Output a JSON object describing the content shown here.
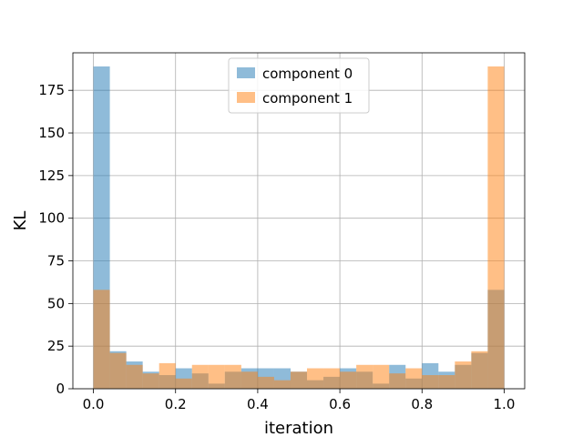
{
  "chart_data": {
    "type": "bar",
    "title": "",
    "xlabel": "iteration",
    "ylabel": "KL",
    "xlim": [
      -0.05,
      1.05
    ],
    "ylim": [
      0,
      197
    ],
    "grid": true,
    "legend_position": "top-center",
    "bin_width": 0.04,
    "bin_starts": [
      0.0,
      0.04,
      0.08,
      0.12,
      0.16,
      0.2,
      0.24,
      0.28,
      0.32,
      0.36,
      0.4,
      0.44,
      0.48,
      0.52,
      0.56,
      0.6,
      0.64,
      0.68,
      0.72,
      0.76,
      0.8,
      0.84,
      0.88,
      0.92,
      0.96
    ],
    "x_ticks": [
      0.0,
      0.2,
      0.4,
      0.6,
      0.8,
      1.0
    ],
    "x_tick_labels": [
      "0.0",
      "0.2",
      "0.4",
      "0.6",
      "0.8",
      "1.0"
    ],
    "y_ticks": [
      0,
      25,
      50,
      75,
      100,
      125,
      150,
      175
    ],
    "y_tick_labels": [
      "0",
      "25",
      "50",
      "75",
      "100",
      "125",
      "150",
      "175"
    ],
    "series": [
      {
        "name": "component 0",
        "color": "#1f77b4",
        "values": [
          189,
          22,
          16,
          10,
          8,
          12,
          9,
          3,
          10,
          12,
          12,
          12,
          10,
          5,
          7,
          12,
          10,
          3,
          14,
          6,
          15,
          10,
          14,
          21,
          58
        ]
      },
      {
        "name": "component 1",
        "color": "#ff7f0e",
        "values": [
          58,
          21,
          14,
          9,
          15,
          6,
          14,
          14,
          14,
          10,
          7,
          5,
          10,
          12,
          12,
          10,
          14,
          14,
          9,
          12,
          8,
          8,
          16,
          22,
          189
        ]
      }
    ]
  }
}
